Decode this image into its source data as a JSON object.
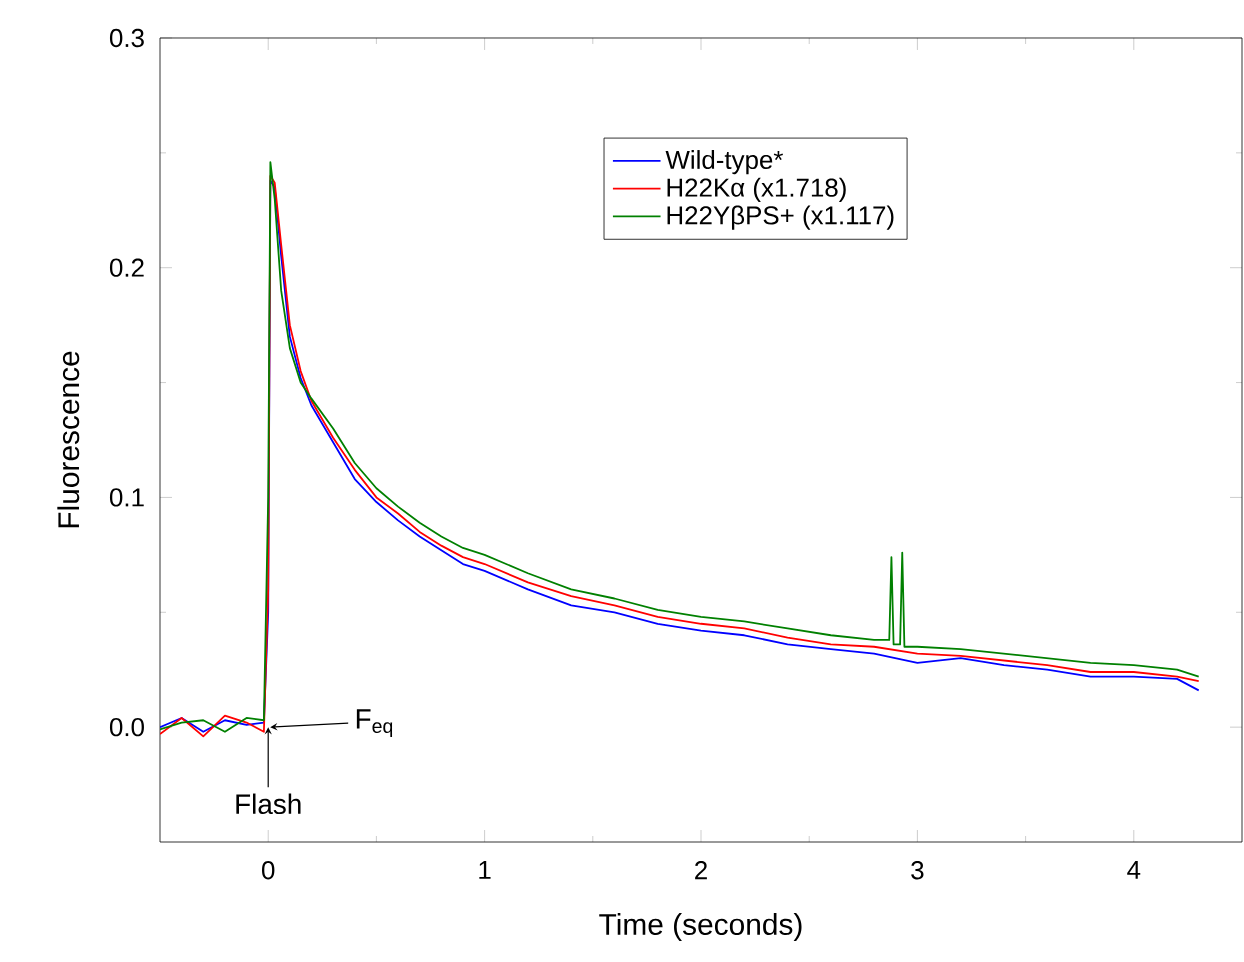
{
  "chart_data": {
    "type": "line",
    "xlabel": "Time (seconds)",
    "ylabel": "Fluorescence",
    "xlim": [
      -0.5,
      4.5
    ],
    "xticks": [
      0,
      1,
      2,
      3,
      4
    ],
    "ylim": [
      -0.05,
      0.3
    ],
    "yticks": [
      {
        "value": 0,
        "label": "0.0"
      },
      0.1,
      0.2,
      0.3
    ],
    "legend": "top right",
    "grid": false,
    "series": [
      {
        "name": "Wild-type*",
        "color": "#0000ff",
        "x": [
          -0.5,
          -0.4,
          -0.3,
          -0.2,
          -0.1,
          -0.02,
          0.0,
          0.01,
          0.03,
          0.06,
          0.1,
          0.15,
          0.2,
          0.3,
          0.4,
          0.5,
          0.6,
          0.7,
          0.8,
          0.9,
          1.0,
          1.2,
          1.4,
          1.6,
          1.8,
          2.0,
          2.2,
          2.4,
          2.6,
          2.8,
          3.0,
          3.2,
          3.4,
          3.6,
          3.8,
          4.0,
          4.2,
          4.3
        ],
        "values": [
          0.0,
          0.004,
          -0.002,
          0.003,
          0.001,
          0.002,
          0.05,
          0.238,
          0.235,
          0.205,
          0.17,
          0.152,
          0.14,
          0.124,
          0.108,
          0.098,
          0.09,
          0.083,
          0.077,
          0.071,
          0.068,
          0.06,
          0.053,
          0.05,
          0.045,
          0.042,
          0.04,
          0.036,
          0.034,
          0.032,
          0.028,
          0.03,
          0.027,
          0.025,
          0.022,
          0.022,
          0.021,
          0.016
        ]
      },
      {
        "name": "H22Kα (x1.718)",
        "color": "#ff0000",
        "x": [
          -0.5,
          -0.4,
          -0.3,
          -0.2,
          -0.1,
          -0.02,
          0.0,
          0.01,
          0.03,
          0.06,
          0.1,
          0.15,
          0.2,
          0.3,
          0.4,
          0.5,
          0.6,
          0.7,
          0.8,
          0.9,
          1.0,
          1.2,
          1.4,
          1.6,
          1.8,
          2.0,
          2.2,
          2.4,
          2.6,
          2.8,
          3.0,
          3.2,
          3.4,
          3.6,
          3.8,
          4.0,
          4.2,
          4.3
        ],
        "values": [
          -0.003,
          0.004,
          -0.004,
          0.005,
          0.002,
          -0.002,
          0.06,
          0.24,
          0.237,
          0.21,
          0.175,
          0.155,
          0.142,
          0.126,
          0.112,
          0.1,
          0.093,
          0.085,
          0.079,
          0.074,
          0.071,
          0.063,
          0.057,
          0.053,
          0.048,
          0.045,
          0.043,
          0.039,
          0.036,
          0.035,
          0.032,
          0.031,
          0.029,
          0.027,
          0.024,
          0.024,
          0.022,
          0.02
        ]
      },
      {
        "name": "H22YβPS+ (x1.117)",
        "color": "#008000",
        "x": [
          -0.5,
          -0.4,
          -0.3,
          -0.2,
          -0.1,
          -0.02,
          0.0,
          0.01,
          0.03,
          0.06,
          0.1,
          0.15,
          0.2,
          0.3,
          0.4,
          0.5,
          0.6,
          0.7,
          0.8,
          0.9,
          1.0,
          1.2,
          1.4,
          1.6,
          1.8,
          2.0,
          2.2,
          2.4,
          2.6,
          2.8,
          2.87,
          2.88,
          2.89,
          2.92,
          2.93,
          2.94,
          3.0,
          3.2,
          3.4,
          3.6,
          3.8,
          4.0,
          4.2,
          4.3
        ],
        "values": [
          -0.001,
          0.002,
          0.003,
          -0.002,
          0.004,
          0.003,
          0.1,
          0.246,
          0.23,
          0.19,
          0.165,
          0.15,
          0.143,
          0.13,
          0.115,
          0.104,
          0.096,
          0.089,
          0.083,
          0.078,
          0.075,
          0.067,
          0.06,
          0.056,
          0.051,
          0.048,
          0.046,
          0.043,
          0.04,
          0.038,
          0.038,
          0.074,
          0.036,
          0.036,
          0.076,
          0.035,
          0.035,
          0.034,
          0.032,
          0.03,
          0.028,
          0.027,
          0.025,
          0.022
        ]
      }
    ],
    "annotations": [
      {
        "text": "Flash",
        "x": 0,
        "y": 0
      },
      {
        "text": "F$_{eq}$",
        "x": 0,
        "y": 0
      }
    ]
  }
}
